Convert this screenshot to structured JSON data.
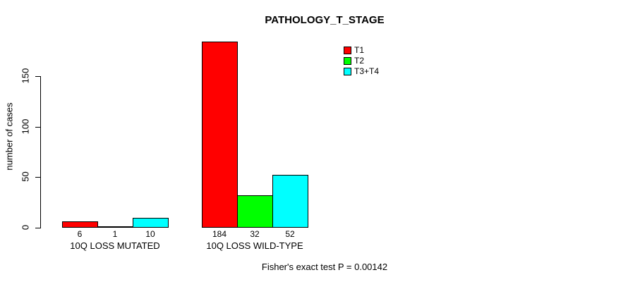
{
  "page": {
    "background": "#ffffff"
  },
  "chart_data": {
    "type": "bar",
    "title": "PATHOLOGY_T_STAGE",
    "xlabel": "",
    "ylabel": "number of cases",
    "categories": [
      "10Q LOSS MUTATED",
      "10Q LOSS WILD-TYPE"
    ],
    "series": [
      {
        "name": "T1",
        "color": "#ff0000",
        "values": [
          6,
          184
        ]
      },
      {
        "name": "T2",
        "color": "#00ff00",
        "values": [
          1,
          32
        ]
      },
      {
        "name": "T3+T4",
        "color": "#00ffff",
        "values": [
          10,
          52
        ]
      }
    ],
    "yticks": [
      0,
      50,
      100,
      150
    ],
    "ylim": [
      0,
      190
    ],
    "grid": false,
    "legend_position": "top-right",
    "bar_value_labels_shown": true,
    "annotation": "Fisher's exact test P = 0.00142"
  }
}
